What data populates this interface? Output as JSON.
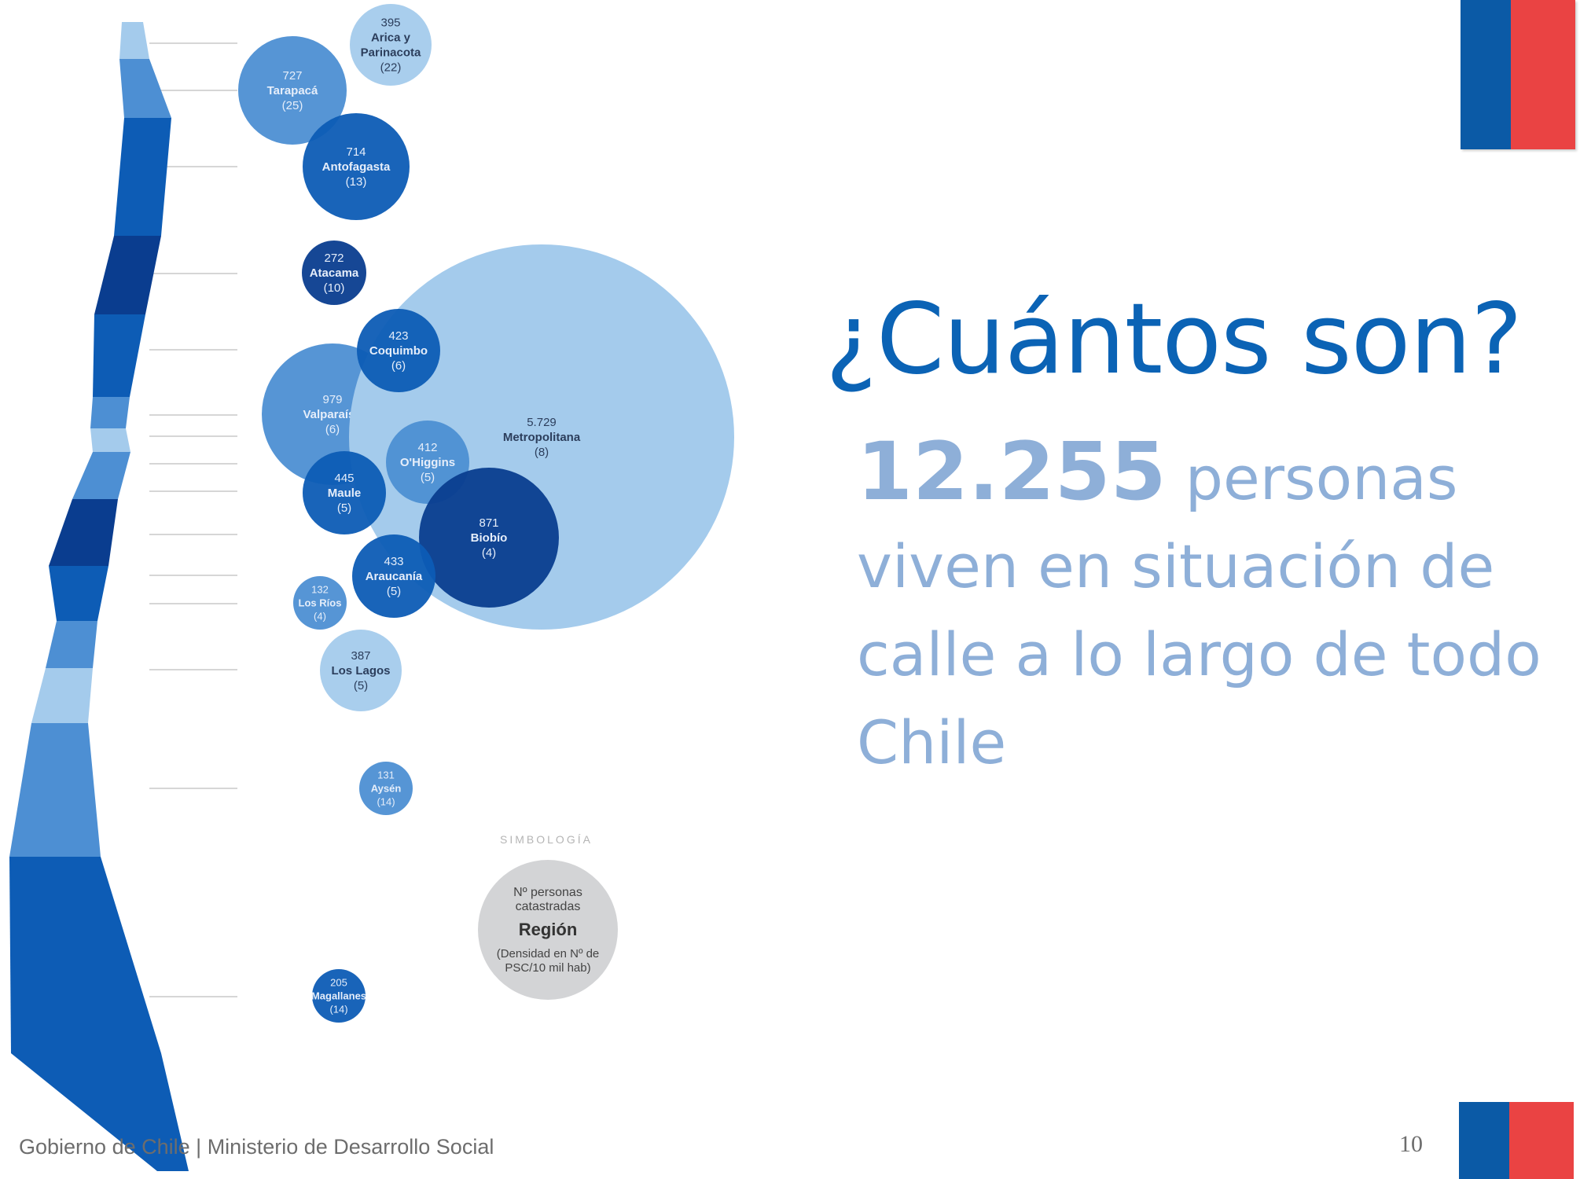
{
  "title": "¿Cuántos son?",
  "body": {
    "number": "12.255",
    "word": "personas",
    "rest": "viven en situación de calle a lo largo de todo Chile"
  },
  "footer": {
    "org": "Gobierno de Chile",
    "separator": "|",
    "ministry": "Ministerio de Desarrollo Social"
  },
  "page_number": "10",
  "colors": {
    "title": "#0b63b5",
    "body": "#8eafd8",
    "flag_blue": "#0b5aa6",
    "flag_red": "#ea4343"
  },
  "legend": {
    "heading": "SIMBOLOGÍA",
    "line1": "Nº personas",
    "line2": "catastradas",
    "region": "Región",
    "line3": "(Densidad en Nº de",
    "line4": "PSC/10 mil hab)"
  },
  "regions": [
    {
      "name": "Arica y Parinacota",
      "count": 395,
      "count_label": "395",
      "density": "(22)",
      "color": "#a4cbec"
    },
    {
      "name": "Tarapacá",
      "count": 727,
      "count_label": "727",
      "density": "(25)",
      "color": "#4d8fd3"
    },
    {
      "name": "Antofagasta",
      "count": 714,
      "count_label": "714",
      "density": "(13)",
      "color": "#0d5cb5"
    },
    {
      "name": "Atacama",
      "count": 272,
      "count_label": "272",
      "density": "(10)",
      "color": "#0a3d8f"
    },
    {
      "name": "Coquimbo",
      "count": 423,
      "count_label": "423",
      "density": "(6)",
      "color": "#0d5cb5"
    },
    {
      "name": "Valparaíso",
      "count": 979,
      "count_label": "979",
      "density": "(6)",
      "color": "#4d8fd3"
    },
    {
      "name": "Metropolitana",
      "count": 5729,
      "count_label": "5.729",
      "density": "(8)",
      "color": "#a4cbec"
    },
    {
      "name": "O'Higgins",
      "count": 412,
      "count_label": "412",
      "density": "(5)",
      "color": "#4d8fd3"
    },
    {
      "name": "Maule",
      "count": 445,
      "count_label": "445",
      "density": "(5)",
      "color": "#0d5cb5"
    },
    {
      "name": "Biobío",
      "count": 871,
      "count_label": "871",
      "density": "(4)",
      "color": "#0a3d8f"
    },
    {
      "name": "Araucanía",
      "count": 433,
      "count_label": "433",
      "density": "(5)",
      "color": "#0d5cb5"
    },
    {
      "name": "Los Ríos",
      "count": 132,
      "count_label": "132",
      "density": "(4)",
      "color": "#4d8fd3"
    },
    {
      "name": "Los Lagos",
      "count": 387,
      "count_label": "387",
      "density": "(5)",
      "color": "#a4cbec"
    },
    {
      "name": "Aysén",
      "count": 131,
      "count_label": "131",
      "density": "(14)",
      "color": "#4d8fd3"
    },
    {
      "name": "Magallanes",
      "count": 205,
      "count_label": "205",
      "density": "(14)",
      "color": "#0d5cb5"
    }
  ]
}
